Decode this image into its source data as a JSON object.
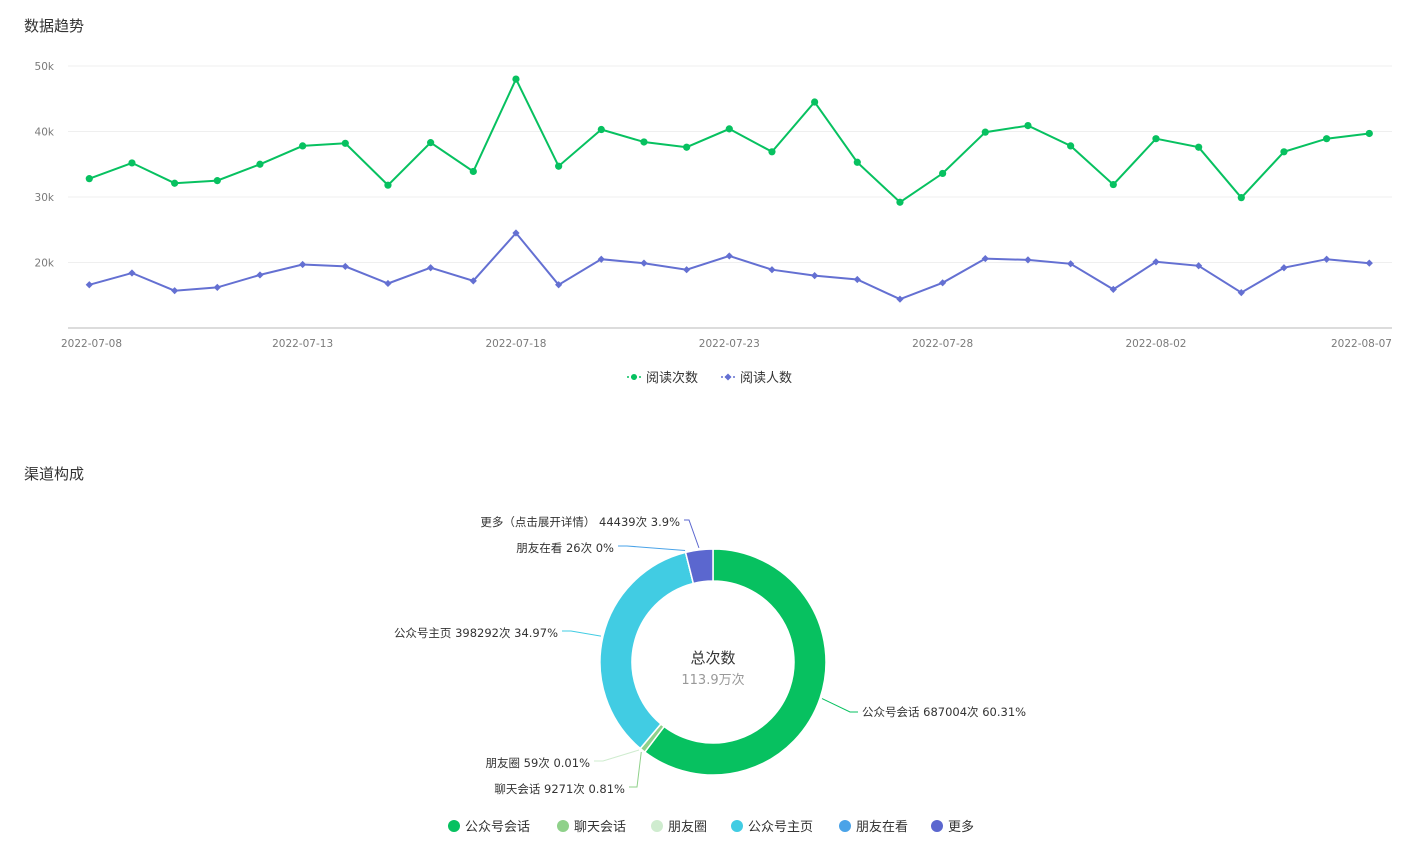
{
  "sections": {
    "trend_title": "数据趋势",
    "channel_title": "渠道构成"
  },
  "chart_data": [
    {
      "type": "line",
      "title": "数据趋势",
      "x": [
        "2022-07-08",
        "2022-07-09",
        "2022-07-10",
        "2022-07-11",
        "2022-07-12",
        "2022-07-13",
        "2022-07-14",
        "2022-07-15",
        "2022-07-16",
        "2022-07-17",
        "2022-07-18",
        "2022-07-19",
        "2022-07-20",
        "2022-07-21",
        "2022-07-22",
        "2022-07-23",
        "2022-07-24",
        "2022-07-25",
        "2022-07-26",
        "2022-07-27",
        "2022-07-28",
        "2022-07-29",
        "2022-07-30",
        "2022-07-31",
        "2022-08-01",
        "2022-08-02",
        "2022-08-03",
        "2022-08-04",
        "2022-08-05",
        "2022-08-06",
        "2022-08-07"
      ],
      "x_tick_labels": [
        "2022-07-08",
        "2022-07-13",
        "2022-07-18",
        "2022-07-23",
        "2022-07-28",
        "2022-08-02",
        "2022-08-07"
      ],
      "y_tick_labels": [
        "50k",
        "40k",
        "30k",
        "20k"
      ],
      "ylim": [
        10000,
        50000
      ],
      "grid": true,
      "legend_position": "bottom-center",
      "series": [
        {
          "name": "阅读次数",
          "color": "#07c160",
          "marker": "circle",
          "values": [
            32800,
            35200,
            32100,
            32500,
            35000,
            37800,
            38200,
            31800,
            38300,
            33900,
            48000,
            34700,
            40300,
            38400,
            37600,
            40400,
            36900,
            44500,
            35300,
            29200,
            33600,
            39900,
            40900,
            37800,
            31900,
            38900,
            37600,
            29900,
            36900,
            38900,
            39700
          ]
        },
        {
          "name": "阅读人数",
          "color": "#6470d2",
          "marker": "diamond",
          "values": [
            16600,
            18400,
            15700,
            16200,
            18100,
            19700,
            19400,
            16800,
            19200,
            17200,
            24500,
            16600,
            20500,
            19900,
            18900,
            21000,
            18900,
            18000,
            17400,
            14400,
            16900,
            20600,
            20400,
            19800,
            15900,
            20100,
            19500,
            15400,
            19200,
            20500,
            19900
          ]
        }
      ]
    },
    {
      "type": "pie",
      "title": "渠道构成",
      "center_title": "总次数",
      "center_value": "113.9万次",
      "legend_position": "bottom-center",
      "slices": [
        {
          "name": "公众号会话",
          "value": 687004,
          "percent": 60.31,
          "label": "公众号会话 687004次 60.31%",
          "color": "#07c160"
        },
        {
          "name": "聊天会话",
          "value": 9271,
          "percent": 0.81,
          "label": "聊天会话 9271次 0.81%",
          "color": "#8fd18a"
        },
        {
          "name": "朋友圈",
          "value": 59,
          "percent": 0.01,
          "label": "朋友圈 59次 0.01%",
          "color": "#cfeccf"
        },
        {
          "name": "公众号主页",
          "value": 398292,
          "percent": 34.97,
          "label": "公众号主页 398292次 34.97%",
          "color": "#41cce3"
        },
        {
          "name": "朋友在看",
          "value": 26,
          "percent": 0,
          "label": "朋友在看 26次 0%",
          "color": "#4aa3e8"
        },
        {
          "name": "更多",
          "value": 44439,
          "percent": 3.9,
          "label": "更多（点击展开详情） 44439次 3.9%",
          "color": "#5b67cf"
        }
      ]
    }
  ]
}
